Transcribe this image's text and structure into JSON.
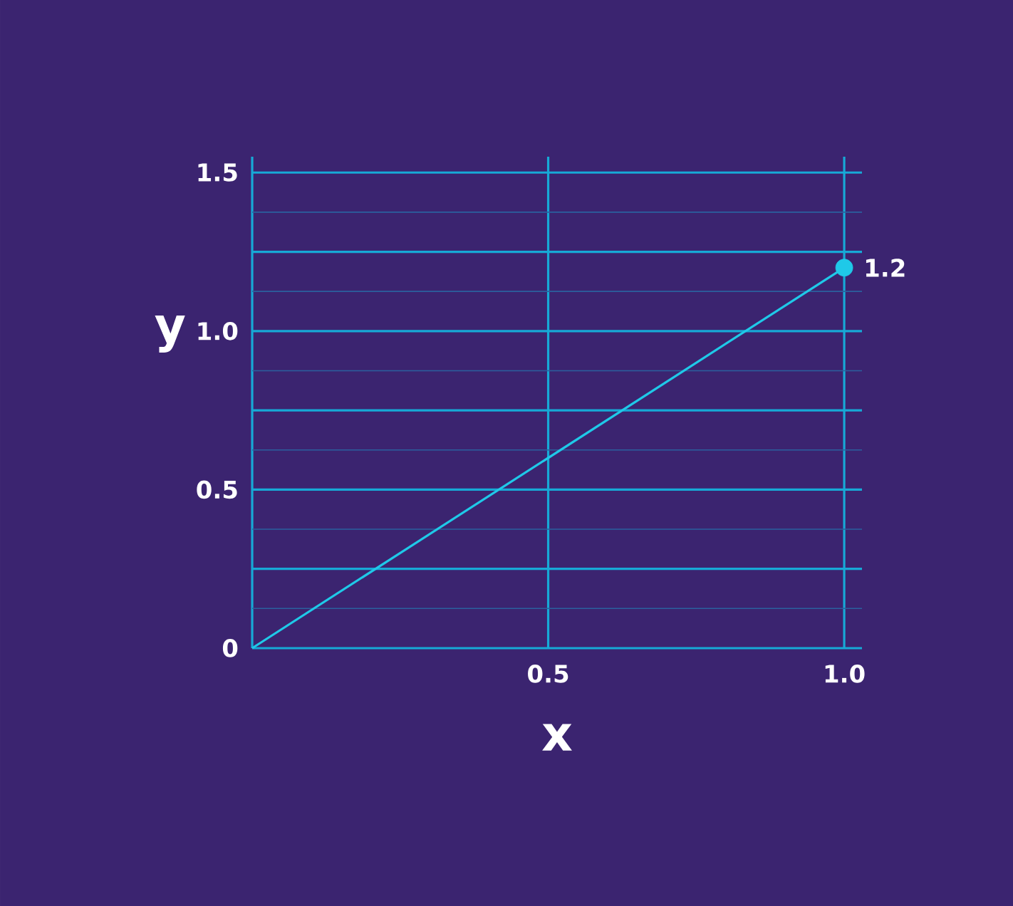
{
  "chart_data": {
    "type": "line",
    "xlabel": "x",
    "ylabel": "y",
    "x": [
      0,
      1
    ],
    "series": [
      {
        "color": "#1fc9e8",
        "values": [
          0,
          1.2
        ],
        "value_labels": [
          null,
          "1.2"
        ]
      }
    ],
    "marker": "circle",
    "xlim": [
      0,
      1.03
    ],
    "ylim": [
      0,
      1.55
    ],
    "xticks": [
      {
        "value": 0,
        "label": null
      },
      0.5,
      {
        "value": 1.0,
        "label": "1.0"
      }
    ],
    "yticks": [
      0,
      {
        "value": 0.125,
        "label": null
      },
      {
        "value": 0.25,
        "label": null
      },
      {
        "value": 0.375,
        "label": null
      },
      0.5,
      {
        "value": 0.625,
        "label": null
      },
      {
        "value": 0.75,
        "label": null
      },
      {
        "value": 0.875,
        "label": null
      },
      {
        "value": 1.0,
        "label": "1.0"
      },
      {
        "value": 1.125,
        "label": null
      },
      {
        "value": 1.25,
        "label": null
      },
      {
        "value": 1.375,
        "label": null
      },
      1.5
    ],
    "grid": true
  }
}
